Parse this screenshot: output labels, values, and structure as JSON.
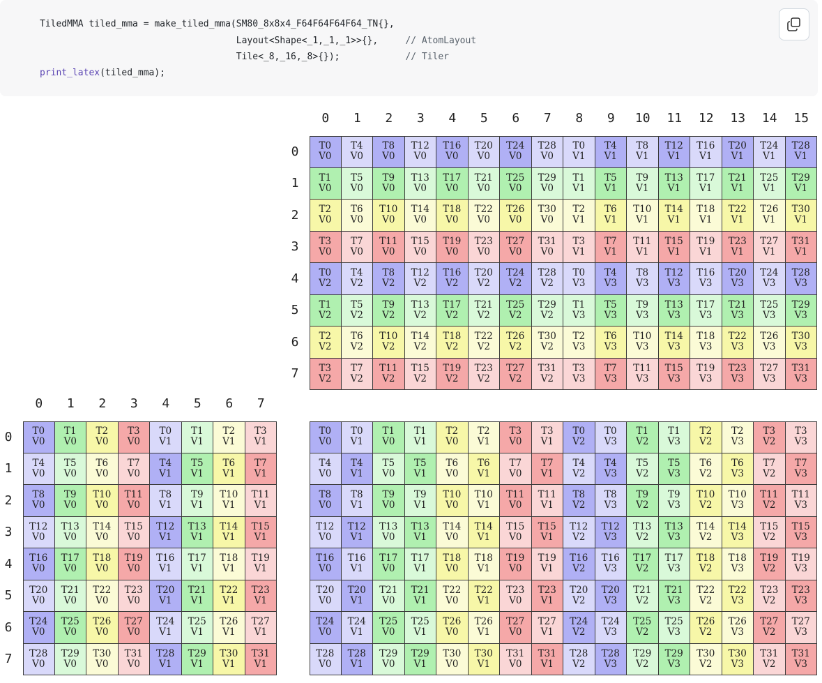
{
  "code": {
    "line1": {
      "pre": "TiledMMA tiled_mma = make_tiled_mma(SM80_8x8x4_F64F64F64F64_TN{},",
      "cmt": ""
    },
    "line2": {
      "pre": "                                    Layout<Shape<_1,_1,_1>>{},     ",
      "cmt": "// AtomLayout"
    },
    "line3": {
      "pre": "                                    Tile<_8,_16,_8>{});            ",
      "cmt": "// Tiler"
    },
    "line4": {
      "fn": "print_latex",
      "rest": "(tiled_mma);"
    }
  },
  "copy_icon": "copy-icon",
  "colors": {
    "dark": [
      "#b0b0f5",
      "#b0f0b0",
      "#f7f7a8",
      "#f5a8a8"
    ],
    "light": [
      "#d9d9fa",
      "#d9f9d9",
      "#fbfbd6",
      "#fad6d6"
    ]
  },
  "layout_A": {
    "col_headers": [
      "0",
      "1",
      "2",
      "3",
      "4",
      "5",
      "6",
      "7"
    ],
    "row_headers": [
      "0",
      "1",
      "2",
      "3",
      "4",
      "5",
      "6",
      "7"
    ],
    "rows": [
      [
        [
          "T0",
          "V0"
        ],
        [
          "T1",
          "V0"
        ],
        [
          "T2",
          "V0"
        ],
        [
          "T3",
          "V0"
        ],
        [
          "T0",
          "V1"
        ],
        [
          "T1",
          "V1"
        ],
        [
          "T2",
          "V1"
        ],
        [
          "T3",
          "V1"
        ]
      ],
      [
        [
          "T4",
          "V0"
        ],
        [
          "T5",
          "V0"
        ],
        [
          "T6",
          "V0"
        ],
        [
          "T7",
          "V0"
        ],
        [
          "T4",
          "V1"
        ],
        [
          "T5",
          "V1"
        ],
        [
          "T6",
          "V1"
        ],
        [
          "T7",
          "V1"
        ]
      ],
      [
        [
          "T8",
          "V0"
        ],
        [
          "T9",
          "V0"
        ],
        [
          "T10",
          "V0"
        ],
        [
          "T11",
          "V0"
        ],
        [
          "T8",
          "V1"
        ],
        [
          "T9",
          "V1"
        ],
        [
          "T10",
          "V1"
        ],
        [
          "T11",
          "V1"
        ]
      ],
      [
        [
          "T12",
          "V0"
        ],
        [
          "T13",
          "V0"
        ],
        [
          "T14",
          "V0"
        ],
        [
          "T15",
          "V0"
        ],
        [
          "T12",
          "V1"
        ],
        [
          "T13",
          "V1"
        ],
        [
          "T14",
          "V1"
        ],
        [
          "T15",
          "V1"
        ]
      ],
      [
        [
          "T16",
          "V0"
        ],
        [
          "T17",
          "V0"
        ],
        [
          "T18",
          "V0"
        ],
        [
          "T19",
          "V0"
        ],
        [
          "T16",
          "V1"
        ],
        [
          "T17",
          "V1"
        ],
        [
          "T18",
          "V1"
        ],
        [
          "T19",
          "V1"
        ]
      ],
      [
        [
          "T20",
          "V0"
        ],
        [
          "T21",
          "V0"
        ],
        [
          "T22",
          "V0"
        ],
        [
          "T23",
          "V0"
        ],
        [
          "T20",
          "V1"
        ],
        [
          "T21",
          "V1"
        ],
        [
          "T22",
          "V1"
        ],
        [
          "T23",
          "V1"
        ]
      ],
      [
        [
          "T24",
          "V0"
        ],
        [
          "T25",
          "V0"
        ],
        [
          "T26",
          "V0"
        ],
        [
          "T27",
          "V0"
        ],
        [
          "T24",
          "V1"
        ],
        [
          "T25",
          "V1"
        ],
        [
          "T26",
          "V1"
        ],
        [
          "T27",
          "V1"
        ]
      ],
      [
        [
          "T28",
          "V0"
        ],
        [
          "T29",
          "V0"
        ],
        [
          "T30",
          "V0"
        ],
        [
          "T31",
          "V0"
        ],
        [
          "T28",
          "V1"
        ],
        [
          "T29",
          "V1"
        ],
        [
          "T30",
          "V1"
        ],
        [
          "T31",
          "V1"
        ]
      ]
    ]
  },
  "layout_B": {
    "col_headers": [
      "0",
      "1",
      "2",
      "3",
      "4",
      "5",
      "6",
      "7",
      "8",
      "9",
      "10",
      "11",
      "12",
      "13",
      "14",
      "15"
    ],
    "row_headers": [
      "0",
      "1",
      "2",
      "3",
      "4",
      "5",
      "6",
      "7"
    ],
    "rows": [
      [
        [
          "T0",
          "V0"
        ],
        [
          "T4",
          "V0"
        ],
        [
          "T8",
          "V0"
        ],
        [
          "T12",
          "V0"
        ],
        [
          "T16",
          "V0"
        ],
        [
          "T20",
          "V0"
        ],
        [
          "T24",
          "V0"
        ],
        [
          "T28",
          "V0"
        ],
        [
          "T0",
          "V1"
        ],
        [
          "T4",
          "V1"
        ],
        [
          "T8",
          "V1"
        ],
        [
          "T12",
          "V1"
        ],
        [
          "T16",
          "V1"
        ],
        [
          "T20",
          "V1"
        ],
        [
          "T24",
          "V1"
        ],
        [
          "T28",
          "V1"
        ]
      ],
      [
        [
          "T1",
          "V0"
        ],
        [
          "T5",
          "V0"
        ],
        [
          "T9",
          "V0"
        ],
        [
          "T13",
          "V0"
        ],
        [
          "T17",
          "V0"
        ],
        [
          "T21",
          "V0"
        ],
        [
          "T25",
          "V0"
        ],
        [
          "T29",
          "V0"
        ],
        [
          "T1",
          "V1"
        ],
        [
          "T5",
          "V1"
        ],
        [
          "T9",
          "V1"
        ],
        [
          "T13",
          "V1"
        ],
        [
          "T17",
          "V1"
        ],
        [
          "T21",
          "V1"
        ],
        [
          "T25",
          "V1"
        ],
        [
          "T29",
          "V1"
        ]
      ],
      [
        [
          "T2",
          "V0"
        ],
        [
          "T6",
          "V0"
        ],
        [
          "T10",
          "V0"
        ],
        [
          "T14",
          "V0"
        ],
        [
          "T18",
          "V0"
        ],
        [
          "T22",
          "V0"
        ],
        [
          "T26",
          "V0"
        ],
        [
          "T30",
          "V0"
        ],
        [
          "T2",
          "V1"
        ],
        [
          "T6",
          "V1"
        ],
        [
          "T10",
          "V1"
        ],
        [
          "T14",
          "V1"
        ],
        [
          "T18",
          "V1"
        ],
        [
          "T22",
          "V1"
        ],
        [
          "T26",
          "V1"
        ],
        [
          "T30",
          "V1"
        ]
      ],
      [
        [
          "T3",
          "V0"
        ],
        [
          "T7",
          "V0"
        ],
        [
          "T11",
          "V0"
        ],
        [
          "T15",
          "V0"
        ],
        [
          "T19",
          "V0"
        ],
        [
          "T23",
          "V0"
        ],
        [
          "T27",
          "V0"
        ],
        [
          "T31",
          "V0"
        ],
        [
          "T3",
          "V1"
        ],
        [
          "T7",
          "V1"
        ],
        [
          "T11",
          "V1"
        ],
        [
          "T15",
          "V1"
        ],
        [
          "T19",
          "V1"
        ],
        [
          "T23",
          "V1"
        ],
        [
          "T27",
          "V1"
        ],
        [
          "T31",
          "V1"
        ]
      ],
      [
        [
          "T0",
          "V2"
        ],
        [
          "T4",
          "V2"
        ],
        [
          "T8",
          "V2"
        ],
        [
          "T12",
          "V2"
        ],
        [
          "T16",
          "V2"
        ],
        [
          "T20",
          "V2"
        ],
        [
          "T24",
          "V2"
        ],
        [
          "T28",
          "V2"
        ],
        [
          "T0",
          "V3"
        ],
        [
          "T4",
          "V3"
        ],
        [
          "T8",
          "V3"
        ],
        [
          "T12",
          "V3"
        ],
        [
          "T16",
          "V3"
        ],
        [
          "T20",
          "V3"
        ],
        [
          "T24",
          "V3"
        ],
        [
          "T28",
          "V3"
        ]
      ],
      [
        [
          "T1",
          "V2"
        ],
        [
          "T5",
          "V2"
        ],
        [
          "T9",
          "V2"
        ],
        [
          "T13",
          "V2"
        ],
        [
          "T17",
          "V2"
        ],
        [
          "T21",
          "V2"
        ],
        [
          "T25",
          "V2"
        ],
        [
          "T29",
          "V2"
        ],
        [
          "T1",
          "V3"
        ],
        [
          "T5",
          "V3"
        ],
        [
          "T9",
          "V3"
        ],
        [
          "T13",
          "V3"
        ],
        [
          "T17",
          "V3"
        ],
        [
          "T21",
          "V3"
        ],
        [
          "T25",
          "V3"
        ],
        [
          "T29",
          "V3"
        ]
      ],
      [
        [
          "T2",
          "V2"
        ],
        [
          "T6",
          "V2"
        ],
        [
          "T10",
          "V2"
        ],
        [
          "T14",
          "V2"
        ],
        [
          "T18",
          "V2"
        ],
        [
          "T22",
          "V2"
        ],
        [
          "T26",
          "V2"
        ],
        [
          "T30",
          "V2"
        ],
        [
          "T2",
          "V3"
        ],
        [
          "T6",
          "V3"
        ],
        [
          "T10",
          "V3"
        ],
        [
          "T14",
          "V3"
        ],
        [
          "T18",
          "V3"
        ],
        [
          "T22",
          "V3"
        ],
        [
          "T26",
          "V3"
        ],
        [
          "T30",
          "V3"
        ]
      ],
      [
        [
          "T3",
          "V2"
        ],
        [
          "T7",
          "V2"
        ],
        [
          "T11",
          "V2"
        ],
        [
          "T15",
          "V2"
        ],
        [
          "T19",
          "V2"
        ],
        [
          "T23",
          "V2"
        ],
        [
          "T27",
          "V2"
        ],
        [
          "T31",
          "V2"
        ],
        [
          "T3",
          "V3"
        ],
        [
          "T7",
          "V3"
        ],
        [
          "T11",
          "V3"
        ],
        [
          "T15",
          "V3"
        ],
        [
          "T19",
          "V3"
        ],
        [
          "T23",
          "V3"
        ],
        [
          "T27",
          "V3"
        ],
        [
          "T31",
          "V3"
        ]
      ]
    ]
  },
  "layout_C": {
    "rows": [
      [
        [
          "T0",
          "V0"
        ],
        [
          "T0",
          "V1"
        ],
        [
          "T1",
          "V0"
        ],
        [
          "T1",
          "V1"
        ],
        [
          "T2",
          "V0"
        ],
        [
          "T2",
          "V1"
        ],
        [
          "T3",
          "V0"
        ],
        [
          "T3",
          "V1"
        ],
        [
          "T0",
          "V2"
        ],
        [
          "T0",
          "V3"
        ],
        [
          "T1",
          "V2"
        ],
        [
          "T1",
          "V3"
        ],
        [
          "T2",
          "V2"
        ],
        [
          "T2",
          "V3"
        ],
        [
          "T3",
          "V2"
        ],
        [
          "T3",
          "V3"
        ]
      ],
      [
        [
          "T4",
          "V0"
        ],
        [
          "T4",
          "V1"
        ],
        [
          "T5",
          "V0"
        ],
        [
          "T5",
          "V1"
        ],
        [
          "T6",
          "V0"
        ],
        [
          "T6",
          "V1"
        ],
        [
          "T7",
          "V0"
        ],
        [
          "T7",
          "V1"
        ],
        [
          "T4",
          "V2"
        ],
        [
          "T4",
          "V3"
        ],
        [
          "T5",
          "V2"
        ],
        [
          "T5",
          "V3"
        ],
        [
          "T6",
          "V2"
        ],
        [
          "T6",
          "V3"
        ],
        [
          "T7",
          "V2"
        ],
        [
          "T7",
          "V3"
        ]
      ],
      [
        [
          "T8",
          "V0"
        ],
        [
          "T8",
          "V1"
        ],
        [
          "T9",
          "V0"
        ],
        [
          "T9",
          "V1"
        ],
        [
          "T10",
          "V0"
        ],
        [
          "T10",
          "V1"
        ],
        [
          "T11",
          "V0"
        ],
        [
          "T11",
          "V1"
        ],
        [
          "T8",
          "V2"
        ],
        [
          "T8",
          "V3"
        ],
        [
          "T9",
          "V2"
        ],
        [
          "T9",
          "V3"
        ],
        [
          "T10",
          "V2"
        ],
        [
          "T10",
          "V3"
        ],
        [
          "T11",
          "V2"
        ],
        [
          "T11",
          "V3"
        ]
      ],
      [
        [
          "T12",
          "V0"
        ],
        [
          "T12",
          "V1"
        ],
        [
          "T13",
          "V0"
        ],
        [
          "T13",
          "V1"
        ],
        [
          "T14",
          "V0"
        ],
        [
          "T14",
          "V1"
        ],
        [
          "T15",
          "V0"
        ],
        [
          "T15",
          "V1"
        ],
        [
          "T12",
          "V2"
        ],
        [
          "T12",
          "V3"
        ],
        [
          "T13",
          "V2"
        ],
        [
          "T13",
          "V3"
        ],
        [
          "T14",
          "V2"
        ],
        [
          "T14",
          "V3"
        ],
        [
          "T15",
          "V2"
        ],
        [
          "T15",
          "V3"
        ]
      ],
      [
        [
          "T16",
          "V0"
        ],
        [
          "T16",
          "V1"
        ],
        [
          "T17",
          "V0"
        ],
        [
          "T17",
          "V1"
        ],
        [
          "T18",
          "V0"
        ],
        [
          "T18",
          "V1"
        ],
        [
          "T19",
          "V0"
        ],
        [
          "T19",
          "V1"
        ],
        [
          "T16",
          "V2"
        ],
        [
          "T16",
          "V3"
        ],
        [
          "T17",
          "V2"
        ],
        [
          "T17",
          "V3"
        ],
        [
          "T18",
          "V2"
        ],
        [
          "T18",
          "V3"
        ],
        [
          "T19",
          "V2"
        ],
        [
          "T19",
          "V3"
        ]
      ],
      [
        [
          "T20",
          "V0"
        ],
        [
          "T20",
          "V1"
        ],
        [
          "T21",
          "V0"
        ],
        [
          "T21",
          "V1"
        ],
        [
          "T22",
          "V0"
        ],
        [
          "T22",
          "V1"
        ],
        [
          "T23",
          "V0"
        ],
        [
          "T23",
          "V1"
        ],
        [
          "T20",
          "V2"
        ],
        [
          "T20",
          "V3"
        ],
        [
          "T21",
          "V2"
        ],
        [
          "T21",
          "V3"
        ],
        [
          "T22",
          "V2"
        ],
        [
          "T22",
          "V3"
        ],
        [
          "T23",
          "V2"
        ],
        [
          "T23",
          "V3"
        ]
      ],
      [
        [
          "T24",
          "V0"
        ],
        [
          "T24",
          "V1"
        ],
        [
          "T25",
          "V0"
        ],
        [
          "T25",
          "V1"
        ],
        [
          "T26",
          "V0"
        ],
        [
          "T26",
          "V1"
        ],
        [
          "T27",
          "V0"
        ],
        [
          "T27",
          "V1"
        ],
        [
          "T24",
          "V2"
        ],
        [
          "T24",
          "V3"
        ],
        [
          "T25",
          "V2"
        ],
        [
          "T25",
          "V3"
        ],
        [
          "T26",
          "V2"
        ],
        [
          "T26",
          "V3"
        ],
        [
          "T27",
          "V2"
        ],
        [
          "T27",
          "V3"
        ]
      ],
      [
        [
          "T28",
          "V0"
        ],
        [
          "T28",
          "V1"
        ],
        [
          "T29",
          "V0"
        ],
        [
          "T29",
          "V1"
        ],
        [
          "T30",
          "V0"
        ],
        [
          "T30",
          "V1"
        ],
        [
          "T31",
          "V0"
        ],
        [
          "T31",
          "V1"
        ],
        [
          "T28",
          "V2"
        ],
        [
          "T28",
          "V3"
        ],
        [
          "T29",
          "V2"
        ],
        [
          "T29",
          "V3"
        ],
        [
          "T30",
          "V2"
        ],
        [
          "T30",
          "V3"
        ],
        [
          "T31",
          "V2"
        ],
        [
          "T31",
          "V3"
        ]
      ]
    ]
  }
}
